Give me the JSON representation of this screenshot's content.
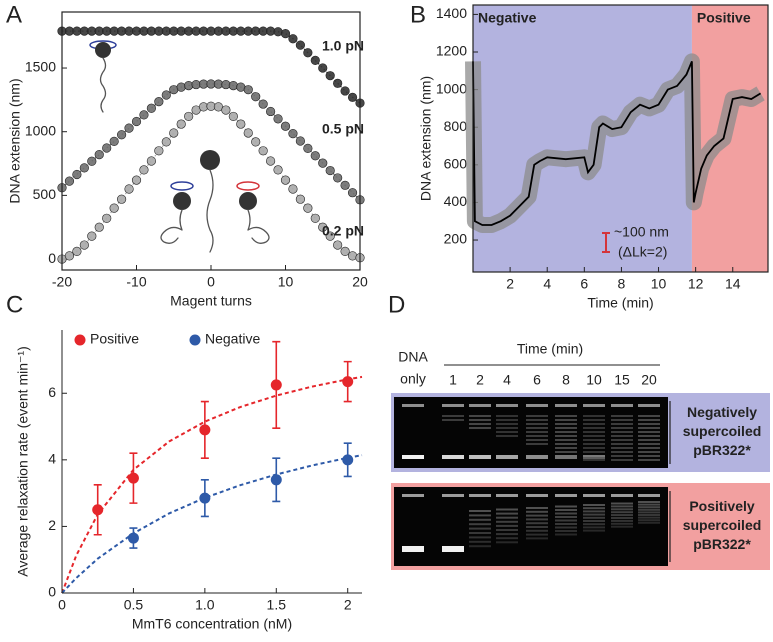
{
  "panel_labels": [
    "A",
    "B",
    "C",
    "D"
  ],
  "chart_data": [
    {
      "type": "line",
      "markers": true,
      "line_style": "dotted",
      "xlabel": "Magent turns",
      "ylabel": "DNA extension (nm)",
      "xlim": [
        -20,
        20
      ],
      "ylim": [
        -86,
        1940
      ],
      "xticks": [
        -20,
        -10,
        0,
        10,
        20
      ],
      "yticks": [
        0,
        500,
        1000,
        1500
      ],
      "x": [
        -20,
        -19,
        -18,
        -17,
        -16,
        -15,
        -14,
        -13,
        -12,
        -11,
        -10,
        -9,
        -8,
        -7,
        -6,
        -5,
        -4,
        -3,
        -2,
        -1,
        0,
        1,
        2,
        3,
        4,
        5,
        6,
        7,
        8,
        9,
        10,
        11,
        12,
        13,
        14,
        15,
        16,
        17,
        18,
        19,
        20
      ],
      "series": [
        {
          "name": "1.0 pN",
          "color": "#333333",
          "values": [
            1790,
            1790,
            1790,
            1790,
            1790,
            1790,
            1790,
            1790,
            1790,
            1790,
            1790,
            1790,
            1790,
            1790,
            1790,
            1790,
            1790,
            1790,
            1790,
            1790,
            1790,
            1790,
            1790,
            1790,
            1790,
            1790,
            1790,
            1790,
            1790,
            1785,
            1770,
            1730,
            1680,
            1620,
            1560,
            1500,
            1440,
            1380,
            1320,
            1270,
            1225
          ]
        },
        {
          "name": "0.5 pN",
          "color": "#6e6e6e",
          "values": [
            560,
            612,
            664,
            716,
            768,
            820,
            872,
            924,
            976,
            1028,
            1080,
            1132,
            1184,
            1236,
            1288,
            1330,
            1350,
            1362,
            1370,
            1374,
            1375,
            1374,
            1370,
            1362,
            1350,
            1330,
            1275,
            1217,
            1159,
            1101,
            1043,
            985,
            927,
            869,
            811,
            753,
            695,
            637,
            579,
            521,
            465
          ]
        },
        {
          "name": "0.2 pN",
          "color": "#a8a8a8",
          "values": [
            0,
            25,
            60,
            110,
            180,
            250,
            320,
            400,
            470,
            550,
            620,
            700,
            770,
            850,
            920,
            990,
            1060,
            1120,
            1170,
            1195,
            1200,
            1195,
            1170,
            1120,
            1060,
            990,
            920,
            850,
            770,
            700,
            620,
            550,
            470,
            400,
            320,
            250,
            180,
            110,
            60,
            25,
            10
          ]
        }
      ]
    },
    {
      "type": "line",
      "markers": false,
      "line_style": "solid",
      "band_color": "#8c8c8c",
      "xlabel": "Time (min)",
      "ylabel": "DNA extension (nm)",
      "xlim": [
        0,
        15.9
      ],
      "ylim": [
        30,
        1450
      ],
      "xticks": [
        2,
        4,
        6,
        8,
        10,
        12,
        14
      ],
      "yticks": [
        200,
        400,
        600,
        800,
        1000,
        1200,
        1400
      ],
      "regions": [
        {
          "label": "Negative",
          "start": 0,
          "end": 11.8,
          "color": "#b3b3df"
        },
        {
          "label": "Positive",
          "start": 11.8,
          "end": 15.9,
          "color": "#f2a0a0"
        }
      ],
      "annotations": [
        "~100 nm",
        "(ΔLk=2)"
      ],
      "series": [
        {
          "color": "#000000",
          "x": [
            0,
            0.1,
            0.5,
            1,
            1.5,
            2,
            2.5,
            3,
            3.3,
            3.6,
            4,
            5,
            6,
            6.2,
            6.5,
            6.8,
            7,
            7.5,
            8,
            8.5,
            9,
            9.5,
            10,
            10.5,
            11,
            11.5,
            11.8,
            11.9,
            12,
            12.3,
            12.6,
            13,
            13.5,
            14,
            14.5,
            15,
            15.5
          ],
          "values": [
            1150,
            300,
            280,
            280,
            300,
            330,
            380,
            430,
            600,
            620,
            640,
            630,
            640,
            560,
            600,
            800,
            820,
            790,
            800,
            880,
            920,
            900,
            920,
            1000,
            1020,
            1080,
            1150,
            400,
            450,
            580,
            650,
            700,
            740,
            950,
            960,
            950,
            980
          ]
        }
      ]
    },
    {
      "type": "scatter",
      "legend": "top-left",
      "xlabel": "MmT6 concentration (nM)",
      "ylabel": "Average relaxation rate (event min⁻¹)",
      "xlim": [
        0,
        2.1
      ],
      "ylim": [
        0,
        7.9
      ],
      "xticks": [
        0,
        0.5,
        {
          "value": 1,
          "label": "1.0"
        },
        1.5,
        2
      ],
      "yticks": [
        0,
        2,
        4,
        6
      ],
      "series": [
        {
          "name": "Positive",
          "color": "#e5262b",
          "x": [
            0.25,
            0.5,
            1,
            1.5,
            2
          ],
          "values": [
            2.5,
            3.45,
            4.9,
            6.25,
            6.35
          ],
          "errors": [
            0.75,
            0.75,
            0.85,
            1.3,
            0.6
          ]
        },
        {
          "name": "Negative",
          "color": "#2e5aa8",
          "x": [
            0.5,
            1,
            1.5,
            2
          ],
          "values": [
            1.65,
            2.85,
            3.4,
            4.0
          ],
          "errors": [
            0.3,
            0.55,
            0.65,
            0.5
          ]
        }
      ],
      "fits": [
        {
          "color": "#e5262b",
          "x": [
            0,
            0.1,
            0.25,
            0.5,
            0.75,
            1,
            1.25,
            1.5,
            1.75,
            2,
            2.1
          ],
          "values": [
            0,
            1.13,
            2.36,
            3.7,
            4.55,
            5.15,
            5.59,
            5.93,
            6.2,
            6.42,
            6.49
          ]
        },
        {
          "color": "#2e5aa8",
          "x": [
            0,
            0.1,
            0.25,
            0.5,
            0.75,
            1,
            1.25,
            1.5,
            1.75,
            2,
            2.1
          ],
          "values": [
            0,
            0.45,
            1.03,
            1.79,
            2.39,
            2.86,
            3.24,
            3.56,
            3.83,
            4.06,
            4.14
          ]
        }
      ]
    }
  ],
  "gel": {
    "lane_header": [
      "DNA",
      "only"
    ],
    "time_label": "Time (min)",
    "lanes": [
      "1",
      "2",
      "4",
      "6",
      "8",
      "10",
      "15",
      "20"
    ],
    "rows": [
      {
        "label": [
          "Negatively",
          "supercoiled",
          "pBR322*"
        ],
        "color": "#b3b3df"
      },
      {
        "label": [
          "Positively",
          "supercoiled",
          "pBR322*"
        ],
        "color": "#f2a0a0"
      }
    ]
  }
}
